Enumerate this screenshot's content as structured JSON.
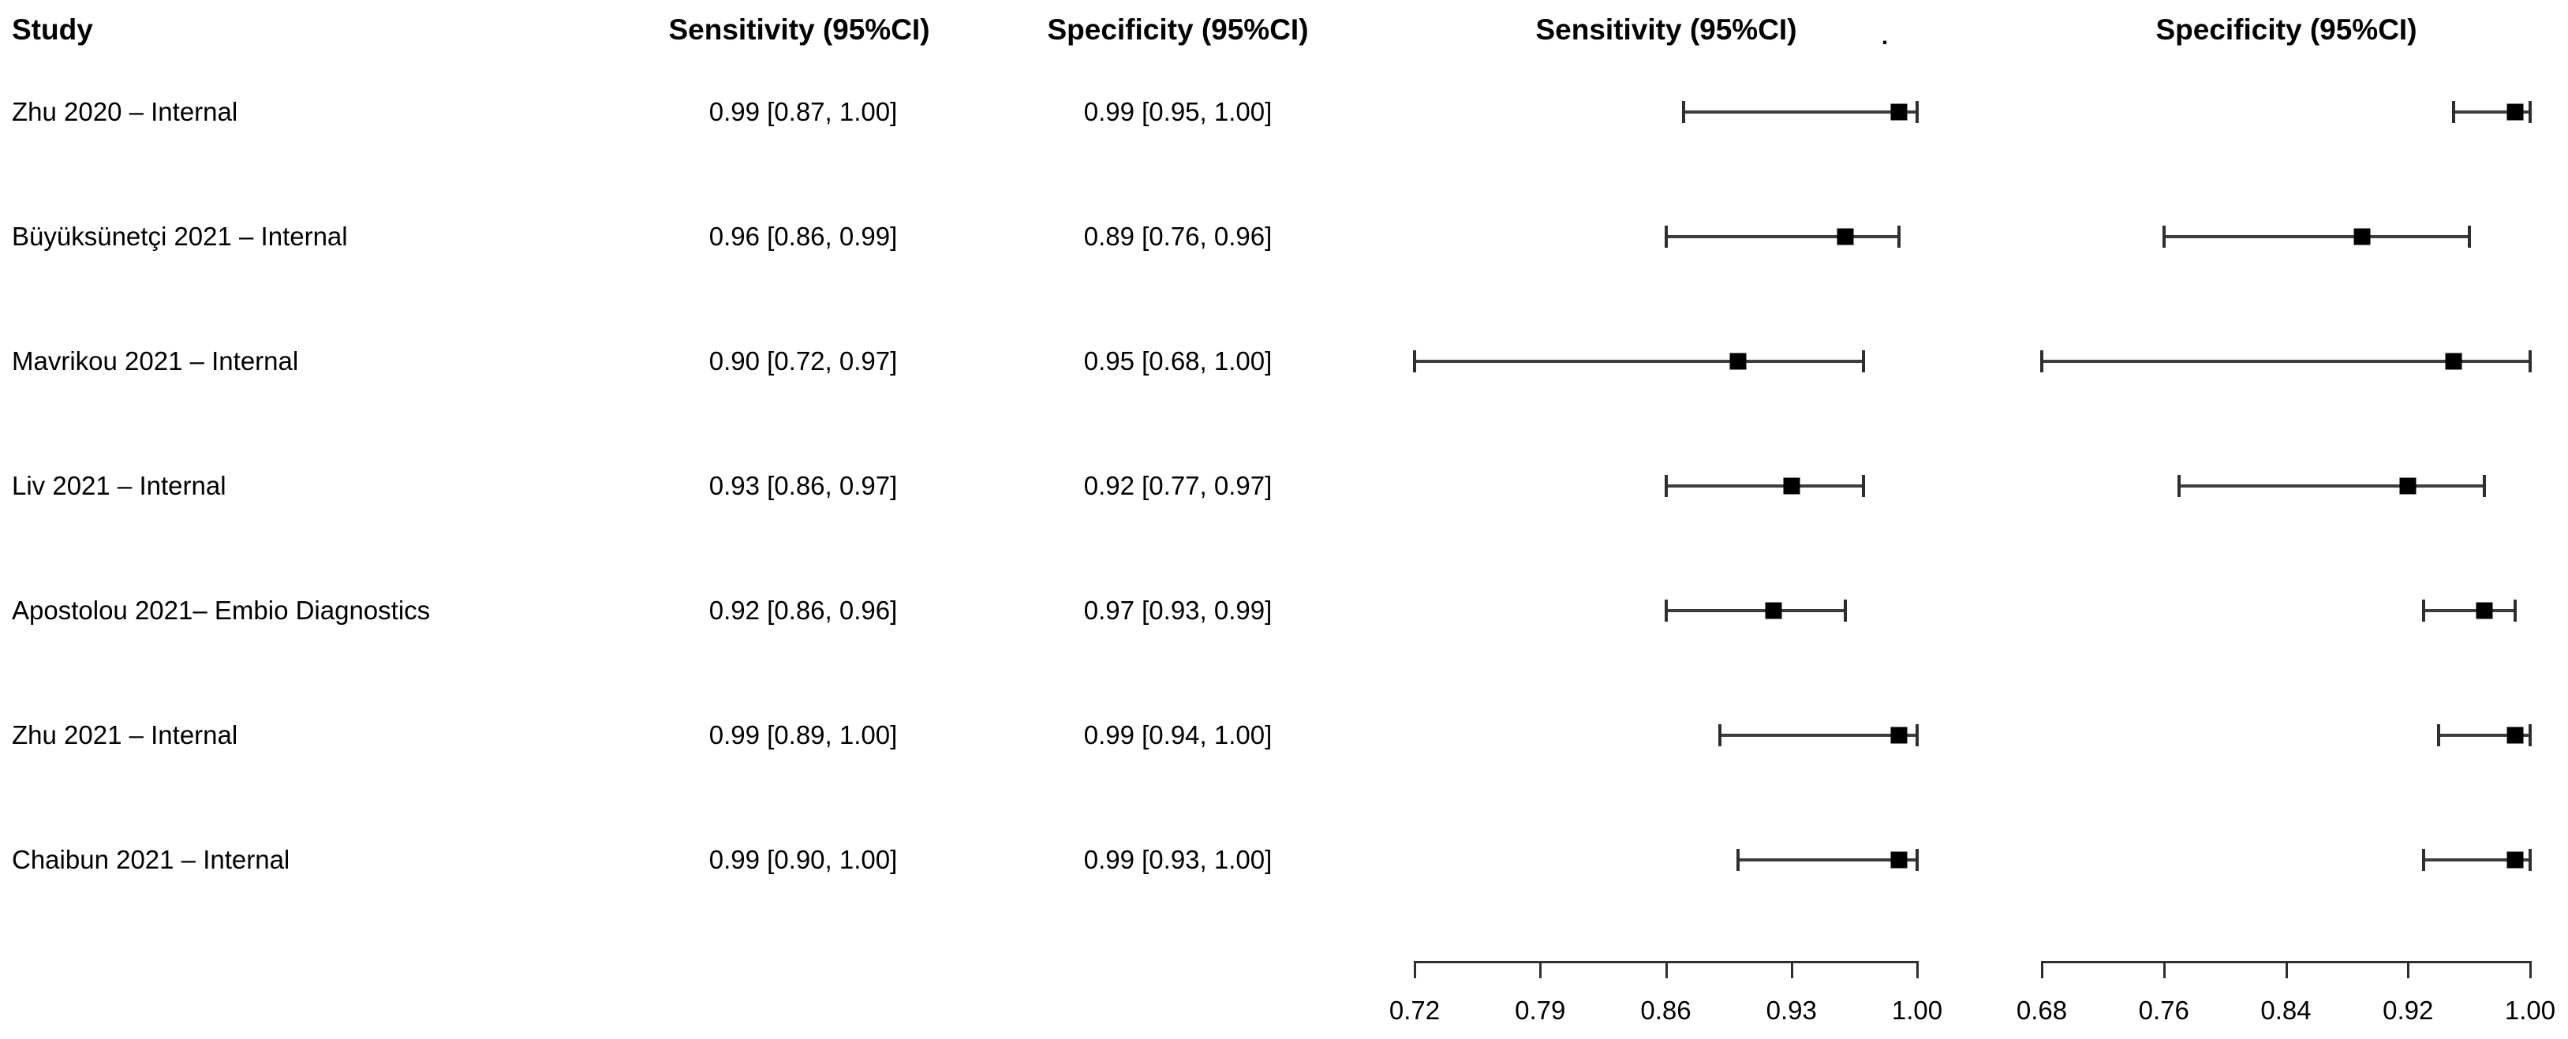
{
  "headers": {
    "study": "Study",
    "sensitivity_text_col": "Sensitivity (95%CI)",
    "specificity_text_col": "Specificity (95%CI)",
    "sensitivity_plot_col": "Sensitivity (95%CI)",
    "specificity_plot_col": "Specificity (95%CI)",
    "dot": "."
  },
  "colors": {
    "background": "#ffffff",
    "text": "#000000",
    "ci_line": "#3d3d3d",
    "ci_cap": "#2e2e2e",
    "marker": "#000000",
    "axis": "#2e2e2e"
  },
  "chart_data": {
    "type": "forest",
    "title": "",
    "grid": false,
    "rows": [
      {
        "study": "Zhu 2020 – Internal",
        "sensitivity": {
          "est": 0.99,
          "lo": 0.87,
          "hi": 1.0,
          "text": "0.99 [0.87, 1.00]"
        },
        "specificity": {
          "est": 0.99,
          "lo": 0.95,
          "hi": 1.0,
          "text": "0.99 [0.95, 1.00]"
        }
      },
      {
        "study": "Büyüksünetçi 2021 – Internal",
        "sensitivity": {
          "est": 0.96,
          "lo": 0.86,
          "hi": 0.99,
          "text": "0.96 [0.86, 0.99]"
        },
        "specificity": {
          "est": 0.89,
          "lo": 0.76,
          "hi": 0.96,
          "text": "0.89 [0.76, 0.96]"
        }
      },
      {
        "study": "Mavrikou 2021 – Internal",
        "sensitivity": {
          "est": 0.9,
          "lo": 0.72,
          "hi": 0.97,
          "text": "0.90 [0.72, 0.97]"
        },
        "specificity": {
          "est": 0.95,
          "lo": 0.68,
          "hi": 1.0,
          "text": "0.95 [0.68, 1.00]"
        }
      },
      {
        "study": "Liv 2021 – Internal",
        "sensitivity": {
          "est": 0.93,
          "lo": 0.86,
          "hi": 0.97,
          "text": "0.93 [0.86, 0.97]"
        },
        "specificity": {
          "est": 0.92,
          "lo": 0.77,
          "hi": 0.97,
          "text": "0.92 [0.77, 0.97]"
        }
      },
      {
        "study": "Apostolou 2021– Embio Diagnostics",
        "sensitivity": {
          "est": 0.92,
          "lo": 0.86,
          "hi": 0.96,
          "text": "0.92 [0.86, 0.96]"
        },
        "specificity": {
          "est": 0.97,
          "lo": 0.93,
          "hi": 0.99,
          "text": "0.97 [0.93, 0.99]"
        }
      },
      {
        "study": "Zhu 2021 – Internal",
        "sensitivity": {
          "est": 0.99,
          "lo": 0.89,
          "hi": 1.0,
          "text": "0.99 [0.89, 1.00]"
        },
        "specificity": {
          "est": 0.99,
          "lo": 0.94,
          "hi": 1.0,
          "text": "0.99 [0.94, 1.00]"
        }
      },
      {
        "study": "Chaibun 2021 – Internal",
        "sensitivity": {
          "est": 0.99,
          "lo": 0.9,
          "hi": 1.0,
          "text": "0.99 [0.90, 1.00]"
        },
        "specificity": {
          "est": 0.99,
          "lo": 0.93,
          "hi": 1.0,
          "text": "0.99 [0.93, 1.00]"
        }
      }
    ],
    "axes": {
      "sensitivity": {
        "label": "Sensitivity (95%CI)",
        "min": 0.72,
        "max": 1.0,
        "ticks": [
          "0.72",
          "0.79",
          "0.86",
          "0.93",
          "1.00"
        ]
      },
      "specificity": {
        "label": "Specificity (95%CI)",
        "min": 0.68,
        "max": 1.0,
        "ticks": [
          "0.68",
          "0.76",
          "0.84",
          "0.92",
          "1.00"
        ]
      }
    }
  }
}
